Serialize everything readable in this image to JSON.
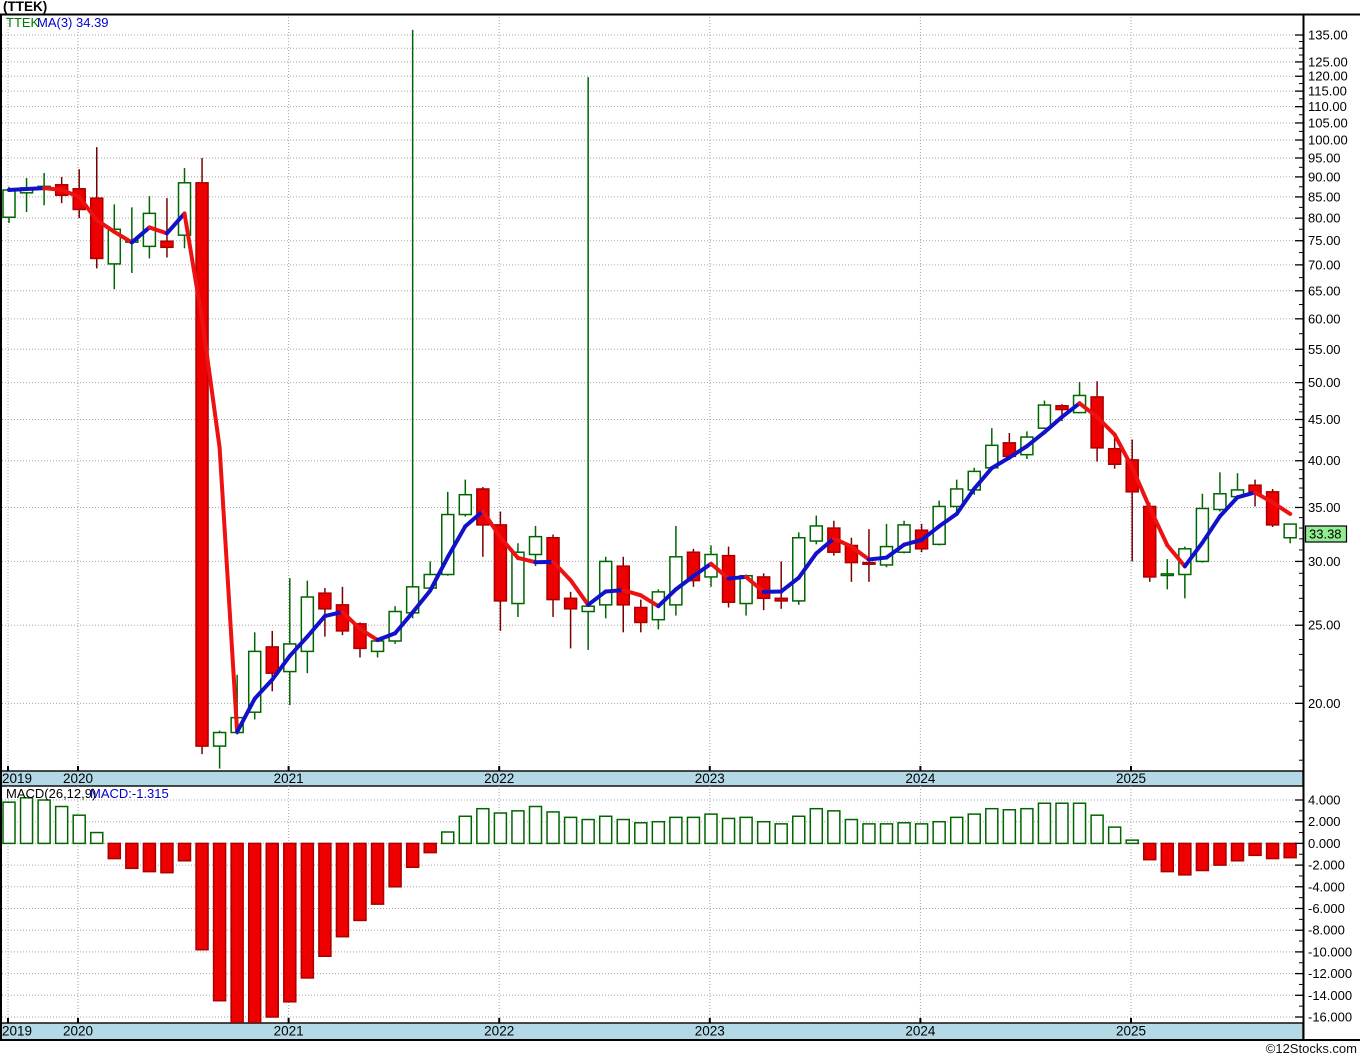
{
  "header": {
    "title": "(TTEK)"
  },
  "price_panel": {
    "legend": {
      "symbol": "TTEK",
      "ma_label": "MA(3)",
      "ma_value": "34.39"
    },
    "last_price_tag": "33.38",
    "axis_tick_labels": [
      "135.00",
      "125.00",
      "120.00",
      "115.00",
      "110.00",
      "105.00",
      "100.00",
      "95.00",
      "90.00",
      "85.00",
      "80.00",
      "75.00",
      "70.00",
      "65.00",
      "60.00",
      "55.00",
      "50.00",
      "45.00",
      "40.00",
      "35.00",
      "30.00",
      "25.00",
      "20.00"
    ]
  },
  "macd_panel": {
    "legend": {
      "name": "MACD(26,12,9)",
      "value": "MACD:-1.315"
    },
    "axis_tick_labels": [
      "4.000",
      "2.000",
      "0.000",
      "-2.000",
      "-4.000",
      "-6.000",
      "-8.000",
      "-10.000",
      "-12.000",
      "-14.000",
      "-16.000"
    ]
  },
  "x_axis": {
    "years": [
      "2019",
      "2020",
      "2021",
      "2022",
      "2023",
      "2024",
      "2025"
    ]
  },
  "footer": {
    "watermark": "©12Stocks.com"
  },
  "colors": {
    "up_candle": "#006600",
    "down_candle": "#ee0000",
    "down_candle_edge": "#aa0000",
    "down_wick": "#7a0000",
    "ma_up": "#1111cc",
    "ma_down": "#ee1111",
    "band": "#b3d8e6",
    "tag_bg": "#90ee90",
    "grid": "#a6a6a6",
    "legend_blue": "#0000cc",
    "legend_green": "#007700",
    "text": "#000000"
  },
  "chart_data": [
    {
      "type": "candlestick",
      "title": "TTEK monthly candles",
      "interval": "monthly",
      "start_label": "2019",
      "end_label": "2025",
      "y_scale": "log",
      "y_axis_labels_range": [
        20,
        135
      ],
      "visible_price_range": [
        16.5,
        137
      ],
      "anomalous_high_spikes": [
        {
          "index": 23,
          "high": 137.0
        },
        {
          "index": 33,
          "high": 119.7
        }
      ],
      "series": {
        "open": [
          80.2,
          86.0,
          87.3,
          88.0,
          87.0,
          84.7,
          70.2,
          74.7,
          73.8,
          74.9,
          76.2,
          88.5,
          17.7,
          18.4,
          19.5,
          23.5,
          21.9,
          23.2,
          27.4,
          26.5,
          25.1,
          23.2,
          23.9,
          25.9,
          27.8,
          28.9,
          34.3,
          36.9,
          33.3,
          26.6,
          30.6,
          32.1,
          27.0,
          26.0,
          26.5,
          29.6,
          26.3,
          25.4,
          26.5,
          30.8,
          28.7,
          30.5,
          26.6,
          28.7,
          27.0,
          26.8,
          31.8,
          33.0,
          31.4,
          29.9,
          29.7,
          30.8,
          32.8,
          31.5,
          35.1,
          36.8,
          39.2,
          42.1,
          40.7,
          43.9,
          46.8,
          45.9,
          48.0,
          41.4,
          40.1,
          35.1,
          28.85,
          28.9,
          30.0,
          34.8,
          36.1,
          37.3,
          36.6,
          32.1
        ],
        "high": [
          87.5,
          89.7,
          91.0,
          90.0,
          92.0,
          98.0,
          83.2,
          82.5,
          85.2,
          84.7,
          92.3,
          95.0,
          18.5,
          21.7,
          24.5,
          24.6,
          28.6,
          28.4,
          27.8,
          27.9,
          25.2,
          24.0,
          26.4,
          137.0,
          30.0,
          36.6,
          37.9,
          37.1,
          34.6,
          31.6,
          33.2,
          32.4,
          27.5,
          119.7,
          30.4,
          30.4,
          26.9,
          27.7,
          33.2,
          31.1,
          31.4,
          31.3,
          28.9,
          29.0,
          30.0,
          32.6,
          34.2,
          33.7,
          32.1,
          32.9,
          33.4,
          33.7,
          33.4,
          35.7,
          37.9,
          39.2,
          43.9,
          43.3,
          43.5,
          47.5,
          47.0,
          50.1,
          50.2,
          42.8,
          42.5,
          35.5,
          30.2,
          31.3,
          36.4,
          38.7,
          38.6,
          37.9,
          36.9,
          33.4
        ],
        "low": [
          78.9,
          81.4,
          83.0,
          83.5,
          80.0,
          69.3,
          65.3,
          68.4,
          71.3,
          71.5,
          73.4,
          17.3,
          16.6,
          18.3,
          19.1,
          20.7,
          19.9,
          21.8,
          24.2,
          24.3,
          22.8,
          22.8,
          23.7,
          25.5,
          27.7,
          28.8,
          34.1,
          30.4,
          24.6,
          25.6,
          29.6,
          25.6,
          23.4,
          23.3,
          25.5,
          24.5,
          24.5,
          24.7,
          25.7,
          27.9,
          27.9,
          26.3,
          25.7,
          26.1,
          26.2,
          26.5,
          31.5,
          30.5,
          28.3,
          28.3,
          29.5,
          30.7,
          30.8,
          31.4,
          34.4,
          36.3,
          39.0,
          40.1,
          40.2,
          43.8,
          44.8,
          45.8,
          39.9,
          39.1,
          30.0,
          28.3,
          27.7,
          27.0,
          29.9,
          34.6,
          36.0,
          35.1,
          33.1,
          31.6
        ],
        "close": [
          86.7,
          87.2,
          87.6,
          85.4,
          82.0,
          71.3,
          77.5,
          75.1,
          81.1,
          73.6,
          88.5,
          17.7,
          18.4,
          19.2,
          23.2,
          21.8,
          23.7,
          27.1,
          26.2,
          24.6,
          23.4,
          23.9,
          26.0,
          27.9,
          28.9,
          34.3,
          36.3,
          33.3,
          26.8,
          30.8,
          32.2,
          26.9,
          26.2,
          26.4,
          30.0,
          26.5,
          25.2,
          27.5,
          30.4,
          28.4,
          30.6,
          26.7,
          28.8,
          27.0,
          26.8,
          32.1,
          33.2,
          30.8,
          29.9,
          29.8,
          31.3,
          33.3,
          31.1,
          35.1,
          36.9,
          38.8,
          41.8,
          40.5,
          42.8,
          46.9,
          46.3,
          48.2,
          41.5,
          39.6,
          36.6,
          28.7,
          28.95,
          31.1,
          34.9,
          36.4,
          36.8,
          36.4,
          33.3,
          33.38
        ]
      },
      "overlays": [
        {
          "name": "MA(3)",
          "period": 3,
          "last_value": 34.39
        }
      ],
      "last_close": 33.38
    },
    {
      "type": "bar",
      "title": "MACD(26,12,9)",
      "last_value": -1.315,
      "ylim": [
        -16,
        4
      ],
      "values": [
        3.8,
        4.2,
        4.0,
        3.4,
        2.6,
        1.0,
        -1.4,
        -2.3,
        -2.6,
        -2.7,
        -1.6,
        -9.8,
        -14.5,
        -16.7,
        -16.7,
        -16.0,
        -14.6,
        -12.4,
        -10.4,
        -8.6,
        -7.1,
        -5.6,
        -4.0,
        -2.2,
        -0.85,
        1.05,
        2.5,
        3.2,
        2.8,
        3.0,
        3.4,
        2.9,
        2.4,
        2.2,
        2.5,
        2.2,
        1.9,
        2.0,
        2.4,
        2.4,
        2.7,
        2.3,
        2.4,
        2.0,
        1.8,
        2.5,
        3.2,
        3.0,
        2.2,
        1.8,
        1.8,
        1.9,
        1.8,
        2.0,
        2.4,
        2.7,
        3.2,
        3.1,
        3.2,
        3.7,
        3.7,
        3.7,
        2.6,
        1.5,
        0.3,
        -1.5,
        -2.6,
        -2.9,
        -2.5,
        -2.0,
        -1.6,
        -1.1,
        -1.4,
        -1.315
      ]
    }
  ]
}
